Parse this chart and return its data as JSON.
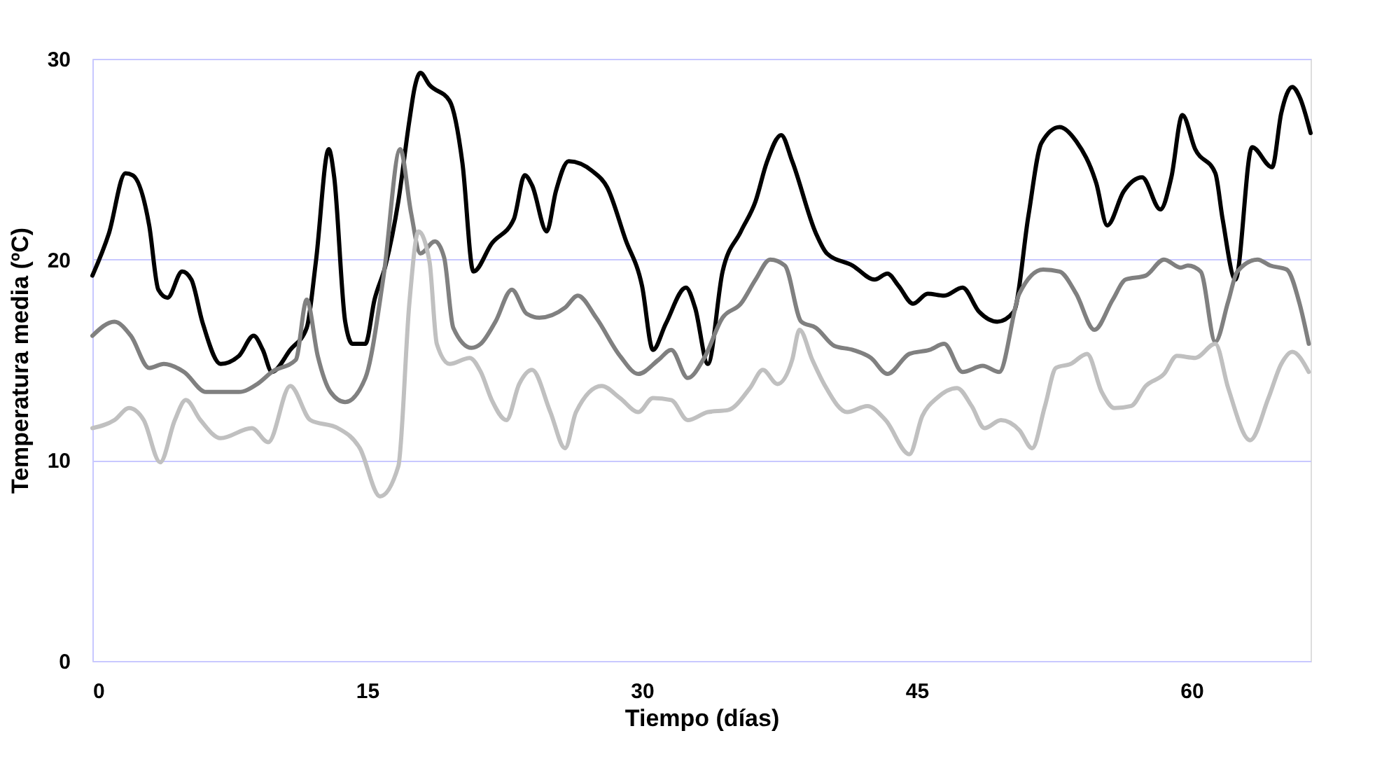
{
  "chart_data": {
    "type": "line",
    "xlabel": "Tiempo (días)",
    "ylabel": "Temperatura media (ºC)",
    "xlim": [
      0,
      66.5
    ],
    "ylim": [
      0,
      30
    ],
    "xticks": [
      0,
      15,
      30,
      45,
      60
    ],
    "yticks": [
      0,
      10,
      20,
      30
    ],
    "grid": "y",
    "legend": false,
    "marker": "none",
    "line_style": "solid",
    "series": [
      {
        "color": "#000000",
        "x": [
          0,
          0.9,
          1.8,
          2.2,
          3.1,
          3.6,
          4.1,
          4.9,
          5.4,
          6,
          7,
          8,
          8.8,
          9.3,
          9.8,
          10.8,
          11.7,
          12.2,
          12.9,
          13.2,
          13.8,
          14.2,
          14.9,
          15.4,
          16,
          16.7,
          17.3,
          17.6,
          17.9,
          18.4,
          19.5,
          20.2,
          20.8,
          21.8,
          23,
          23.6,
          24,
          24.8,
          25.3,
          26,
          27.3,
          28.1,
          29.1,
          30,
          30.6,
          31.3,
          32.4,
          32.9,
          33.6,
          34.4,
          35.4,
          36.2,
          36.8,
          37.6,
          38.2,
          39.5,
          40.1,
          41.5,
          42.7,
          43.4,
          44,
          44.8,
          45.6,
          46.5,
          47.5,
          48.4,
          49.4,
          50.3,
          51.1,
          51.8,
          52.8,
          53.7,
          54.8,
          55.4,
          56.3,
          57.3,
          58.3,
          58.9,
          59.5,
          60.2,
          61.3,
          61.7,
          62.4,
          63.3,
          64.4,
          64.9,
          65.5,
          65.9,
          66.5
        ],
        "values": [
          19.2,
          21.3,
          24.3,
          24.2,
          21.7,
          18.5,
          18.1,
          19.4,
          19,
          16.9,
          14.8,
          15.2,
          16.2,
          15.5,
          14.4,
          15.5,
          16.6,
          19.9,
          25.5,
          24.1,
          16.9,
          15.8,
          15.8,
          18,
          19.7,
          22.9,
          26.9,
          28.6,
          29.3,
          28.7,
          27.9,
          24.8,
          19.4,
          20.8,
          22,
          24.2,
          23.7,
          21.4,
          23.4,
          24.9,
          24.4,
          23.6,
          21,
          18.7,
          15.5,
          16.8,
          18.6,
          17.6,
          14.8,
          19.4,
          21.4,
          22.9,
          24.8,
          26.2,
          24.9,
          21.3,
          20.3,
          19.7,
          19,
          19.3,
          18.7,
          17.8,
          18.3,
          18.2,
          18.6,
          17.4,
          16.9,
          17.4,
          22.2,
          25.8,
          26.6,
          25.9,
          23.8,
          21.7,
          23.4,
          24.1,
          22.5,
          24.1,
          27.2,
          25.5,
          24.3,
          22,
          19,
          25.6,
          24.6,
          27.3,
          28.6,
          28.1,
          26.3
        ]
      },
      {
        "color": "#808080",
        "x": [
          0,
          1.2,
          2.1,
          3.1,
          3.9,
          5,
          6.2,
          8,
          9,
          9.8,
          11.1,
          11.7,
          12.3,
          13,
          13.8,
          14.9,
          15.9,
          16.8,
          17.4,
          17.9,
          18.7,
          19.2,
          19.7,
          20.7,
          21.2,
          22,
          22.9,
          23.7,
          24.4,
          25.8,
          26.5,
          27.5,
          28.8,
          29.8,
          30.9,
          31.6,
          32.5,
          33.4,
          34.4,
          35.4,
          36.2,
          37,
          37.8,
          38.7,
          39.5,
          40.5,
          41.5,
          42.5,
          43.4,
          44.6,
          45.7,
          46.5,
          47.5,
          48.6,
          49.5,
          50.6,
          51.9,
          52.8,
          53.7,
          54.7,
          55.7,
          56.4,
          57.5,
          58.5,
          59.4,
          59.8,
          60.5,
          61.3,
          62,
          62.5,
          63.6,
          64.3,
          65.2,
          65.9,
          66.4
        ],
        "values": [
          16.2,
          16.9,
          16.2,
          14.6,
          14.8,
          14.4,
          13.4,
          13.4,
          13.8,
          14.4,
          15,
          18,
          15.2,
          13.4,
          12.9,
          14.1,
          19.2,
          25.5,
          22.3,
          20.3,
          20.9,
          20.1,
          16.6,
          15.6,
          15.8,
          16.9,
          18.5,
          17.3,
          17.1,
          17.6,
          18.2,
          17.1,
          15.2,
          14.3,
          15,
          15.5,
          14.1,
          15.1,
          17.1,
          17.8,
          19,
          20,
          19.7,
          16.9,
          16.6,
          15.7,
          15.5,
          15.1,
          14.3,
          15.3,
          15.5,
          15.8,
          14.4,
          14.7,
          14.4,
          18.3,
          19.5,
          19.4,
          18.3,
          16.5,
          18,
          19,
          19.2,
          20,
          19.6,
          19.7,
          19.4,
          15.9,
          17.9,
          19.4,
          20,
          19.7,
          19.5,
          17.8,
          15.8
        ]
      },
      {
        "color": "#c0c0c0",
        "x": [
          0,
          1.2,
          2,
          2.8,
          3.7,
          4.5,
          5.1,
          5.9,
          7,
          8.7,
          9.6,
          10.8,
          11.9,
          13.4,
          14.6,
          15.7,
          16.7,
          17.3,
          17.8,
          18.4,
          18.8,
          19.5,
          20.6,
          21.2,
          21.8,
          22.6,
          23.3,
          24,
          25,
          25.8,
          26.4,
          27.8,
          28.8,
          29.8,
          30.6,
          31.6,
          32.5,
          33.6,
          34.7,
          35.9,
          36.6,
          37.4,
          38.2,
          38.6,
          39.3,
          40,
          41.2,
          42.3,
          43.3,
          44.6,
          45.3,
          46.1,
          47.2,
          48,
          48.7,
          49.6,
          50.6,
          51.3,
          52,
          52.6,
          53.4,
          54.3,
          55.1,
          55.8,
          56.7,
          57.5,
          58.5,
          59.2,
          60.2,
          61.3,
          62,
          63.2,
          64.2,
          64.9,
          65.5,
          66.4
        ],
        "values": [
          11.6,
          12,
          12.6,
          12,
          9.9,
          12,
          13,
          12,
          11.1,
          11.6,
          10.9,
          13.7,
          12,
          11.6,
          10.6,
          8.2,
          9.7,
          17.8,
          21.4,
          19.9,
          15.8,
          14.8,
          15.1,
          14.4,
          13,
          12,
          13.8,
          14.5,
          12.4,
          10.6,
          12.4,
          13.7,
          13.1,
          12.4,
          13.1,
          13,
          12,
          12.4,
          12.5,
          13.6,
          14.5,
          13.8,
          15,
          16.5,
          15,
          13.7,
          12.4,
          12.7,
          12,
          10.3,
          12.2,
          13.1,
          13.6,
          12.7,
          11.6,
          12,
          11.5,
          10.6,
          12.7,
          14.6,
          14.8,
          15.3,
          13.4,
          12.6,
          12.7,
          13.7,
          14.3,
          15.2,
          15.1,
          15.8,
          13.6,
          11,
          13.1,
          14.8,
          15.4,
          14.4
        ]
      }
    ]
  }
}
